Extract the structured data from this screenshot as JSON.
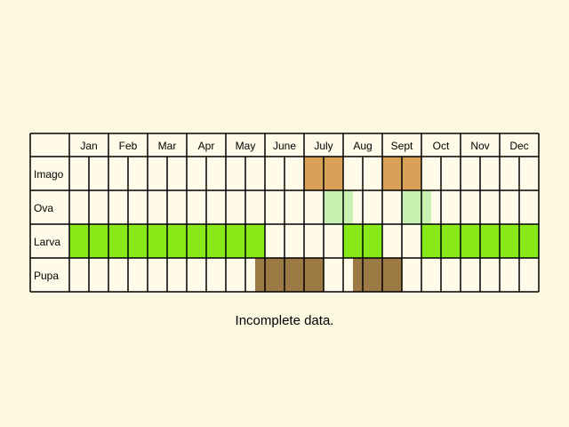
{
  "months": [
    "Jan",
    "Feb",
    "Mar",
    "Apr",
    "May",
    "June",
    "July",
    "Aug",
    "Sept",
    "Oct",
    "Nov",
    "Dec"
  ],
  "stages": [
    {
      "name": "Imago",
      "color": "#d8a058",
      "periods": [
        {
          "from": 6.0,
          "to": 7.0
        },
        {
          "from": 8.0,
          "to": 9.0
        }
      ]
    },
    {
      "name": "Ova",
      "color": "#c8f0b0",
      "periods": [
        {
          "from": 6.5,
          "to": 7.25
        },
        {
          "from": 8.5,
          "to": 9.25
        }
      ]
    },
    {
      "name": "Larva",
      "color": "#88e818",
      "periods": [
        {
          "from": 0.0,
          "to": 5.0
        },
        {
          "from": 7.0,
          "to": 8.0
        },
        {
          "from": 9.0,
          "to": 12.0
        }
      ]
    },
    {
      "name": "Pupa",
      "color": "#9c7a44",
      "periods": [
        {
          "from": 4.75,
          "to": 6.5
        },
        {
          "from": 7.25,
          "to": 8.5
        }
      ]
    }
  ],
  "colors": {
    "background": "#fcf8e0",
    "cell": "#fffbe8",
    "line": "#000000"
  },
  "note": "Incomplete data."
}
